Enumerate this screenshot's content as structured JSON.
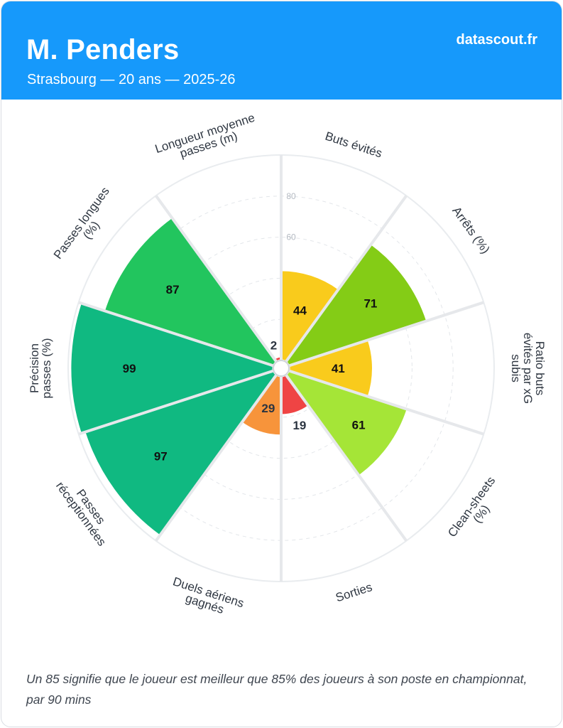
{
  "header": {
    "player_name": "M. Penders",
    "subtitle": "Strasbourg — 20 ans — 2025-26",
    "brand": "datascout.fr"
  },
  "footnote": "Un 85 signifie que le joueur est meilleur que 85% des joueurs à son poste en championnat, par 90 mins",
  "colors": {
    "header_bg": "#1699fb",
    "red": "#ef4444",
    "orange": "#f7943b",
    "yellow": "#f9cb1c",
    "light_green": "#a5e537",
    "green": "#84cc16",
    "dark_green": "#22c55e",
    "teal_green": "#10b981"
  },
  "chart_data": {
    "type": "polar-bar",
    "scale": [
      0,
      100
    ],
    "ticks": [
      60,
      80
    ],
    "grid": true,
    "categories": [
      {
        "label": "Buts évités",
        "value": 44,
        "color": "#f9cb1c"
      },
      {
        "label": "Arrêts (%)",
        "value": 71,
        "color": "#84cc16"
      },
      {
        "label": "Ratio buts évités par xG subis",
        "value": 41,
        "color": "#f9cb1c"
      },
      {
        "label": "Clean-sheets (%)",
        "value": 61,
        "color": "#a5e537"
      },
      {
        "label": "Sorties",
        "value": 19,
        "color": "#ef4444"
      },
      {
        "label": "Duels aériens gagnés",
        "value": 29,
        "color": "#f7943b"
      },
      {
        "label": "Passes réceptionnées",
        "value": 97,
        "color": "#10b981"
      },
      {
        "label": "Précision passes (%)",
        "value": 99,
        "color": "#10b981"
      },
      {
        "label": "Passes longues (%)",
        "value": 87,
        "color": "#22c55e"
      },
      {
        "label": "Longueur moyenne passes (m)",
        "value": 2,
        "color": "#ef4444"
      }
    ]
  }
}
